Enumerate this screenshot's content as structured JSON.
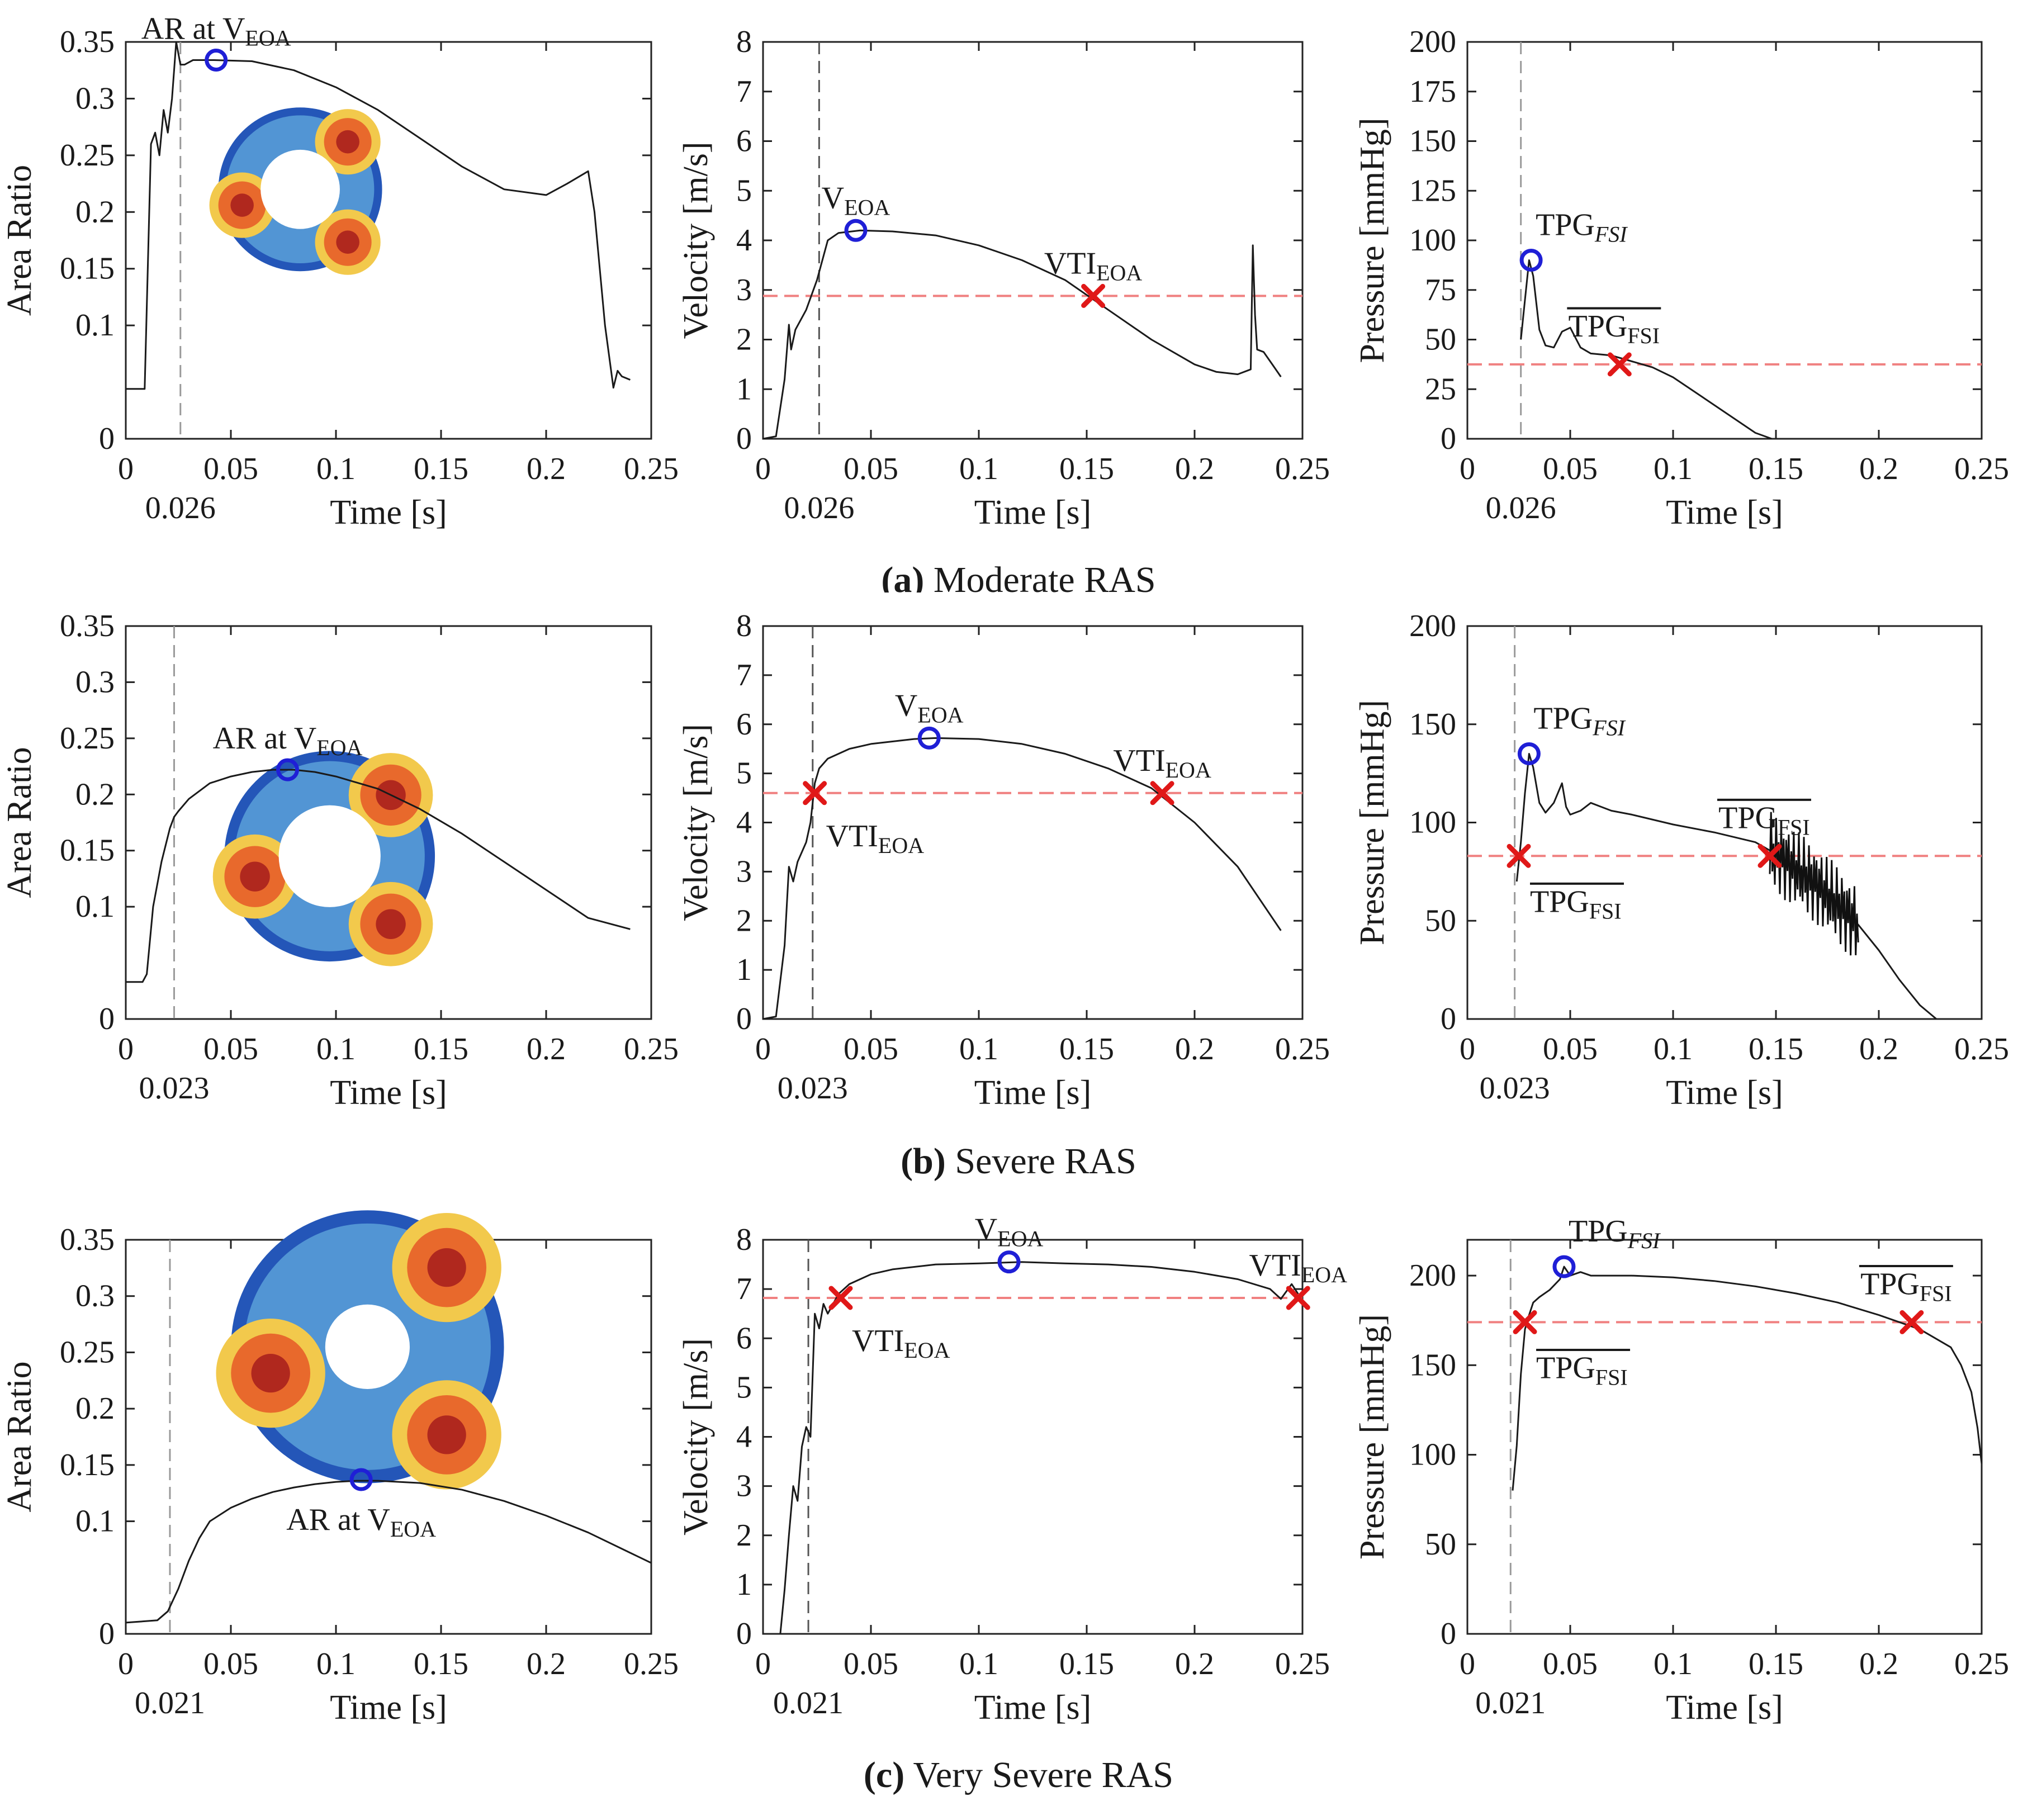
{
  "colors": {
    "curve": "#1a1a1a",
    "marker_o": "#1f1fd6",
    "marker_x": "#e01818",
    "mean_line": "#f08080",
    "vline_dark": "#555555",
    "vline_light": "#9a9a9a"
  },
  "captions": [
    {
      "letter": "(a)",
      "text": "Moderate RAS"
    },
    {
      "letter": "(b)",
      "text": "Severe RAS"
    },
    {
      "letter": "(c)",
      "text": "Very Severe RAS"
    }
  ],
  "chart_data": [
    {
      "type": "line",
      "case": "Moderate RAS",
      "quantity": "area",
      "xlabel": "Time [s]",
      "ylabel": "Area Ratio",
      "xlim": [
        0,
        0.25
      ],
      "ylim": [
        0,
        0.35
      ],
      "xticks": [
        "0",
        "0.05",
        "0.1",
        "0.15",
        "0.2",
        "0.25"
      ],
      "yticks": [
        "0",
        "0.1",
        "0.15",
        "0.2",
        "0.25",
        "0.3",
        "0.35"
      ],
      "vline": {
        "x": 0.026,
        "label": "0.026"
      },
      "series": {
        "name": "Area Ratio",
        "x": [
          0,
          0.009,
          0.012,
          0.014,
          0.016,
          0.018,
          0.02,
          0.022,
          0.024,
          0.026,
          0.028,
          0.032,
          0.042,
          0.06,
          0.08,
          0.1,
          0.12,
          0.14,
          0.16,
          0.18,
          0.2,
          0.21,
          0.22,
          0.223,
          0.228,
          0.232,
          0.234,
          0.236,
          0.24
        ],
        "y": [
          0.044,
          0.044,
          0.26,
          0.27,
          0.25,
          0.29,
          0.27,
          0.3,
          0.35,
          0.33,
          0.33,
          0.334,
          0.334,
          0.333,
          0.325,
          0.31,
          0.29,
          0.265,
          0.24,
          0.22,
          0.215,
          0.225,
          0.236,
          0.2,
          0.1,
          0.045,
          0.06,
          0.055,
          0.052
        ]
      },
      "points": [
        {
          "kind": "circle",
          "x": 0.043,
          "y": 0.334,
          "label": "AR at V",
          "sub": "EOA"
        }
      ],
      "inset": {
        "shape": "tri"
      }
    },
    {
      "type": "line",
      "case": "Moderate RAS",
      "quantity": "velocity",
      "xlabel": "Time [s]",
      "ylabel": "Velocity [m/s]",
      "xlim": [
        0,
        0.25
      ],
      "ylim": [
        0,
        8
      ],
      "xticks": [
        "0",
        "0.05",
        "0.1",
        "0.15",
        "0.2",
        "0.25"
      ],
      "yticks": [
        "0",
        "1",
        "2",
        "3",
        "4",
        "5",
        "6",
        "7",
        "8"
      ],
      "vline": {
        "x": 0.026,
        "label": "0.026"
      },
      "hline": 2.88,
      "series": {
        "name": "Velocity",
        "x": [
          0,
          0.006,
          0.01,
          0.012,
          0.013,
          0.015,
          0.02,
          0.025,
          0.03,
          0.035,
          0.045,
          0.06,
          0.08,
          0.1,
          0.12,
          0.14,
          0.16,
          0.18,
          0.2,
          0.21,
          0.22,
          0.226,
          0.227,
          0.228,
          0.229,
          0.232,
          0.236,
          0.24
        ],
        "y": [
          0,
          0.05,
          1.2,
          2.3,
          1.8,
          2.2,
          2.6,
          3.2,
          4.0,
          4.15,
          4.2,
          4.18,
          4.1,
          3.9,
          3.6,
          3.2,
          2.6,
          2.0,
          1.5,
          1.35,
          1.3,
          1.4,
          3.9,
          2.5,
          1.8,
          1.75,
          1.5,
          1.25
        ]
      },
      "points": [
        {
          "kind": "circle",
          "x": 0.043,
          "y": 4.2,
          "label": "V",
          "sub": "EOA"
        },
        {
          "kind": "cross",
          "x": 0.153,
          "y": 2.88,
          "label": "VTI",
          "sub": "EOA"
        }
      ]
    },
    {
      "type": "line",
      "case": "Moderate RAS",
      "quantity": "pressure",
      "xlabel": "Time [s]",
      "ylabel": "Pressure [mmHg]",
      "xlim": [
        0,
        0.25
      ],
      "ylim": [
        0,
        200
      ],
      "xticks": [
        "0",
        "0.05",
        "0.1",
        "0.15",
        "0.2",
        "0.25"
      ],
      "yticks": [
        "0",
        "25",
        "50",
        "75",
        "100",
        "125",
        "150",
        "175",
        "200"
      ],
      "vline": {
        "x": 0.026,
        "label": "0.026"
      },
      "hline": 37.5,
      "series": {
        "name": "TPG",
        "x": [
          0.026,
          0.028,
          0.03,
          0.032,
          0.035,
          0.038,
          0.042,
          0.046,
          0.05,
          0.055,
          0.06,
          0.07,
          0.08,
          0.09,
          0.1,
          0.11,
          0.12,
          0.13,
          0.14,
          0.148
        ],
        "y": [
          50,
          70,
          90,
          82,
          55,
          47,
          46,
          54,
          56,
          46,
          43,
          42,
          39,
          36,
          31,
          24,
          17,
          10,
          3,
          0
        ]
      },
      "points": [
        {
          "kind": "circle",
          "x": 0.031,
          "y": 90,
          "label": "TPG",
          "sub": "FSI"
        },
        {
          "kind": "cross",
          "x": 0.074,
          "y": 37.5,
          "label": "TPG",
          "sub": "FSI",
          "bar": true
        }
      ]
    },
    {
      "type": "line",
      "case": "Severe RAS",
      "quantity": "area",
      "xlabel": "Time [s]",
      "ylabel": "Area Ratio",
      "xlim": [
        0,
        0.25
      ],
      "ylim": [
        0,
        0.35
      ],
      "xticks": [
        "0",
        "0.05",
        "0.1",
        "0.15",
        "0.2",
        "0.25"
      ],
      "yticks": [
        "0",
        "0.1",
        "0.15",
        "0.2",
        "0.25",
        "0.3",
        "0.35"
      ],
      "vline": {
        "x": 0.023,
        "label": "0.023"
      },
      "series": {
        "name": "Area Ratio",
        "x": [
          0,
          0.008,
          0.01,
          0.013,
          0.015,
          0.017,
          0.019,
          0.021,
          0.023,
          0.025,
          0.03,
          0.04,
          0.05,
          0.06,
          0.07,
          0.08,
          0.09,
          0.1,
          0.12,
          0.14,
          0.16,
          0.18,
          0.2,
          0.22,
          0.24
        ],
        "y": [
          0.033,
          0.033,
          0.04,
          0.1,
          0.12,
          0.14,
          0.155,
          0.17,
          0.18,
          0.185,
          0.196,
          0.21,
          0.216,
          0.22,
          0.222,
          0.222,
          0.22,
          0.216,
          0.205,
          0.187,
          0.165,
          0.14,
          0.115,
          0.09,
          0.08
        ]
      },
      "points": [
        {
          "kind": "circle",
          "x": 0.077,
          "y": 0.222,
          "label": "AR at V",
          "sub": "EOA"
        }
      ],
      "inset": {
        "shape": "tri"
      }
    },
    {
      "type": "line",
      "case": "Severe RAS",
      "quantity": "velocity",
      "xlabel": "Time [s]",
      "ylabel": "Velocity [m/s]",
      "xlim": [
        0,
        0.25
      ],
      "ylim": [
        0,
        8
      ],
      "xticks": [
        "0",
        "0.05",
        "0.1",
        "0.15",
        "0.2",
        "0.25"
      ],
      "yticks": [
        "0",
        "1",
        "2",
        "3",
        "4",
        "5",
        "6",
        "7",
        "8"
      ],
      "vline": {
        "x": 0.023,
        "label": "0.023"
      },
      "hline": 4.6,
      "series": {
        "name": "Velocity",
        "x": [
          0,
          0.006,
          0.01,
          0.012,
          0.014,
          0.016,
          0.02,
          0.022,
          0.024,
          0.026,
          0.03,
          0.04,
          0.05,
          0.06,
          0.07,
          0.08,
          0.1,
          0.12,
          0.14,
          0.16,
          0.18,
          0.2,
          0.22,
          0.24
        ],
        "y": [
          0,
          0.05,
          1.5,
          3.1,
          2.8,
          3.2,
          3.6,
          4.0,
          4.8,
          5.1,
          5.3,
          5.5,
          5.6,
          5.65,
          5.7,
          5.72,
          5.7,
          5.6,
          5.4,
          5.1,
          4.7,
          4.0,
          3.1,
          1.8
        ]
      },
      "points": [
        {
          "kind": "circle",
          "x": 0.077,
          "y": 5.72,
          "label": "V",
          "sub": "EOA"
        },
        {
          "kind": "cross",
          "x": 0.024,
          "y": 4.6,
          "label": "VTI",
          "sub": "EOA"
        },
        {
          "kind": "cross",
          "x": 0.185,
          "y": 4.6,
          "label": "VTI",
          "sub": "EOA"
        }
      ]
    },
    {
      "type": "line",
      "case": "Severe RAS",
      "quantity": "pressure",
      "xlabel": "Time [s]",
      "ylabel": "Pressure [mmHg]",
      "xlim": [
        0,
        0.25
      ],
      "ylim": [
        0,
        200
      ],
      "xticks": [
        "0",
        "0.05",
        "0.1",
        "0.15",
        "0.2",
        "0.25"
      ],
      "yticks": [
        "0",
        "50",
        "100",
        "150",
        "200"
      ],
      "vline": {
        "x": 0.023,
        "label": "0.023"
      },
      "hline": 83,
      "series": {
        "name": "TPG",
        "x": [
          0.024,
          0.026,
          0.028,
          0.03,
          0.032,
          0.035,
          0.038,
          0.042,
          0.046,
          0.048,
          0.05,
          0.055,
          0.06,
          0.065,
          0.07,
          0.08,
          0.1,
          0.12,
          0.14,
          0.15,
          0.16,
          0.17,
          0.18,
          0.19,
          0.2,
          0.21,
          0.22,
          0.228
        ],
        "y": [
          70,
          90,
          115,
          135,
          128,
          110,
          105,
          110,
          120,
          108,
          104,
          106,
          110,
          108,
          106,
          104,
          99,
          95,
          90,
          84,
          76,
          68,
          58,
          48,
          35,
          20,
          7,
          0
        ]
      },
      "noise": [
        0.147,
        0.19,
        20
      ],
      "points": [
        {
          "kind": "circle",
          "x": 0.03,
          "y": 135,
          "label": "TPG",
          "sub": "FSI"
        },
        {
          "kind": "cross",
          "x": 0.025,
          "y": 83,
          "label": "TPG",
          "sub": "FSI",
          "bar": true
        },
        {
          "kind": "cross",
          "x": 0.147,
          "y": 83,
          "label": "TPG",
          "sub": "FSI",
          "bar": true
        }
      ]
    },
    {
      "type": "line",
      "case": "Very Severe RAS",
      "quantity": "area",
      "xlabel": "Time [s]",
      "ylabel": "Area Ratio",
      "xlim": [
        0,
        0.25
      ],
      "ylim": [
        0,
        0.35
      ],
      "xticks": [
        "0",
        "0.05",
        "0.1",
        "0.15",
        "0.2",
        "0.25"
      ],
      "yticks": [
        "0",
        "0.1",
        "0.15",
        "0.2",
        "0.25",
        "0.3",
        "0.35"
      ],
      "vline": {
        "x": 0.021,
        "label": "0.021"
      },
      "series": {
        "name": "Area Ratio",
        "x": [
          0,
          0.015,
          0.02,
          0.025,
          0.03,
          0.035,
          0.04,
          0.05,
          0.06,
          0.07,
          0.08,
          0.09,
          0.1,
          0.11,
          0.12,
          0.14,
          0.16,
          0.18,
          0.2,
          0.22,
          0.24,
          0.25
        ],
        "y": [
          0.01,
          0.012,
          0.02,
          0.04,
          0.065,
          0.085,
          0.1,
          0.112,
          0.12,
          0.126,
          0.13,
          0.133,
          0.135,
          0.136,
          0.136,
          0.134,
          0.128,
          0.118,
          0.105,
          0.09,
          0.072,
          0.063
        ]
      },
      "points": [
        {
          "kind": "circle",
          "x": 0.112,
          "y": 0.137,
          "label": "AR at V",
          "sub": "EOA"
        }
      ],
      "inset": {
        "shape": "hex"
      }
    },
    {
      "type": "line",
      "case": "Very Severe RAS",
      "quantity": "velocity",
      "xlabel": "Time [s]",
      "ylabel": "Velocity [m/s]",
      "xlim": [
        0,
        0.25
      ],
      "ylim": [
        0,
        8
      ],
      "xticks": [
        "0",
        "0.05",
        "0.1",
        "0.15",
        "0.2",
        "0.25"
      ],
      "yticks": [
        "0",
        "1",
        "2",
        "3",
        "4",
        "5",
        "6",
        "7",
        "8"
      ],
      "vline": {
        "x": 0.021,
        "label": "0.021"
      },
      "hline": 6.82,
      "series": {
        "name": "Velocity",
        "x": [
          0.008,
          0.01,
          0.012,
          0.014,
          0.016,
          0.018,
          0.02,
          0.022,
          0.024,
          0.026,
          0.028,
          0.03,
          0.035,
          0.04,
          0.05,
          0.06,
          0.08,
          0.1,
          0.12,
          0.14,
          0.16,
          0.18,
          0.2,
          0.22,
          0.235,
          0.24,
          0.245,
          0.248
        ],
        "y": [
          0,
          0.9,
          2.0,
          3.0,
          2.7,
          3.8,
          4.2,
          4.0,
          6.5,
          6.2,
          6.7,
          6.5,
          6.9,
          7.1,
          7.3,
          7.4,
          7.5,
          7.52,
          7.55,
          7.52,
          7.5,
          7.45,
          7.35,
          7.2,
          7.0,
          6.8,
          7.1,
          6.9
        ]
      },
      "points": [
        {
          "kind": "circle",
          "x": 0.114,
          "y": 7.55,
          "label": "V",
          "sub": "EOA"
        },
        {
          "kind": "cross",
          "x": 0.036,
          "y": 6.82,
          "label": "VTI",
          "sub": "EOA"
        },
        {
          "kind": "cross",
          "x": 0.248,
          "y": 6.82,
          "label": "VTI",
          "sub": "EOA"
        }
      ]
    },
    {
      "type": "line",
      "case": "Very Severe RAS",
      "quantity": "pressure",
      "xlabel": "Time [s]",
      "ylabel": "Pressure [mmHg]",
      "xlim": [
        0,
        0.25
      ],
      "ylim": [
        0,
        220
      ],
      "xticks": [
        "0",
        "0.05",
        "0.1",
        "0.15",
        "0.2",
        "0.25"
      ],
      "yticks": [
        "0",
        "50",
        "100",
        "150",
        "200"
      ],
      "vline": {
        "x": 0.021,
        "label": "0.021"
      },
      "hline": 174,
      "series": {
        "name": "TPG",
        "x": [
          0.022,
          0.024,
          0.026,
          0.028,
          0.03,
          0.032,
          0.035,
          0.04,
          0.045,
          0.047,
          0.05,
          0.055,
          0.06,
          0.08,
          0.1,
          0.12,
          0.14,
          0.16,
          0.18,
          0.2,
          0.22,
          0.235,
          0.24,
          0.245,
          0.248,
          0.25
        ],
        "y": [
          80,
          105,
          145,
          170,
          178,
          185,
          188,
          192,
          198,
          205,
          200,
          202,
          200,
          200,
          199,
          197,
          194,
          190,
          185,
          178,
          170,
          160,
          150,
          135,
          115,
          95
        ]
      },
      "points": [
        {
          "kind": "circle",
          "x": 0.047,
          "y": 205,
          "label": "TPG",
          "sub": "FSI"
        },
        {
          "kind": "cross",
          "x": 0.028,
          "y": 174,
          "label": "TPG",
          "sub": "FSI",
          "bar": true
        },
        {
          "kind": "cross",
          "x": 0.216,
          "y": 174,
          "label": "TPG",
          "sub": "FSI",
          "bar": true
        }
      ]
    }
  ]
}
